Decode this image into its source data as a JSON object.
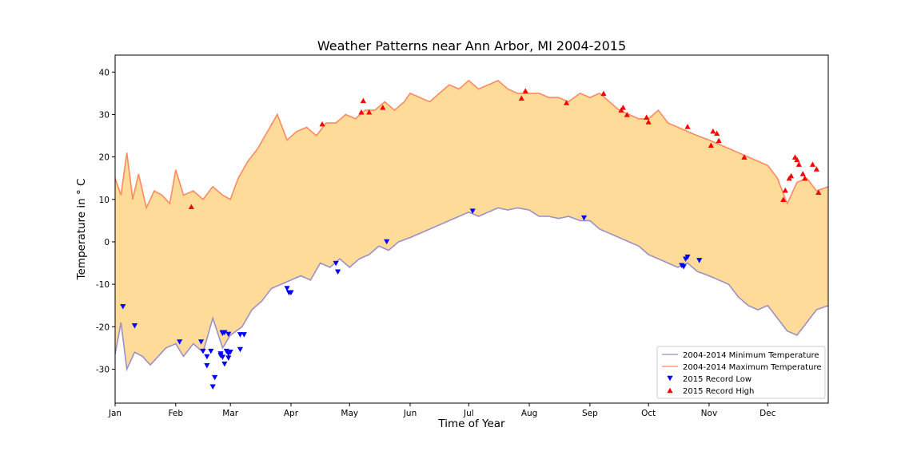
{
  "chart_data": {
    "type": "line",
    "title": "Weather Patterns near Ann Arbor, MI 2004-2015",
    "xlabel": "Time of Year",
    "ylabel": "Temperature in $^\\circ$C",
    "ylabel_display": "Temperature in ° C",
    "xlim": [
      0,
      365
    ],
    "ylim": [
      -38,
      44
    ],
    "x_ticks": [
      {
        "day": 0,
        "label": "Jan"
      },
      {
        "day": 31,
        "label": "Feb"
      },
      {
        "day": 59,
        "label": "Mar"
      },
      {
        "day": 90,
        "label": "Apr"
      },
      {
        "day": 120,
        "label": "May"
      },
      {
        "day": 151,
        "label": "Jun"
      },
      {
        "day": 181,
        "label": "Jul"
      },
      {
        "day": 212,
        "label": "Aug"
      },
      {
        "day": 243,
        "label": "Sep"
      },
      {
        "day": 273,
        "label": "Oct"
      },
      {
        "day": 304,
        "label": "Nov"
      },
      {
        "day": 334,
        "label": "Dec"
      }
    ],
    "y_ticks": [
      40,
      30,
      20,
      10,
      0,
      -10,
      -20,
      -30
    ],
    "legend_position": "lower right",
    "fill_between": {
      "color": "#ffdb9a",
      "between": [
        "2004-2014 Maximum Temperature",
        "2004-2014 Minimum Temperature"
      ]
    },
    "series": [
      {
        "name": "2004-2014 Minimum Temperature",
        "kind": "line",
        "color": "#9b8fc6",
        "x": [
          0,
          3,
          6,
          10,
          14,
          18,
          22,
          26,
          31,
          35,
          40,
          45,
          50,
          55,
          59,
          65,
          70,
          75,
          80,
          85,
          90,
          95,
          100,
          105,
          110,
          115,
          120,
          125,
          130,
          135,
          140,
          145,
          151,
          156,
          161,
          166,
          171,
          176,
          181,
          186,
          191,
          196,
          201,
          206,
          212,
          217,
          222,
          227,
          232,
          238,
          243,
          248,
          253,
          258,
          263,
          268,
          273,
          278,
          283,
          288,
          293,
          298,
          304,
          309,
          314,
          319,
          324,
          329,
          334,
          339,
          344,
          349,
          354,
          359,
          365
        ],
        "values": [
          -26.5,
          -19,
          -30,
          -26,
          -27,
          -29,
          -27,
          -25,
          -24,
          -27,
          -24,
          -26,
          -18,
          -25,
          -22,
          -20,
          -16,
          -14,
          -11,
          -10,
          -9,
          -8,
          -9,
          -5,
          -6,
          -4,
          -6,
          -4,
          -3,
          -1,
          -2,
          0,
          1,
          2,
          3,
          4,
          5,
          6,
          7,
          6,
          7,
          8,
          7.5,
          8,
          7.5,
          6,
          6,
          5.5,
          6,
          5,
          5,
          3,
          2,
          1,
          0,
          -1,
          -3,
          -4,
          -5,
          -6,
          -5,
          -7,
          -8,
          -9,
          -10,
          -13,
          -15,
          -16,
          -15,
          -18,
          -21,
          -22,
          -19,
          -16,
          -15
        ]
      },
      {
        "name": "2004-2014 Maximum Temperature",
        "kind": "line",
        "color": "#fa8a60",
        "x": [
          0,
          3,
          6,
          9,
          12,
          16,
          20,
          24,
          28,
          31,
          35,
          40,
          45,
          50,
          55,
          59,
          63,
          68,
          73,
          78,
          83,
          88,
          93,
          98,
          103,
          108,
          113,
          118,
          123,
          128,
          133,
          138,
          143,
          148,
          151,
          156,
          161,
          166,
          171,
          176,
          181,
          186,
          191,
          196,
          201,
          206,
          212,
          217,
          222,
          227,
          232,
          238,
          243,
          248,
          253,
          258,
          263,
          268,
          273,
          278,
          283,
          288,
          293,
          298,
          304,
          309,
          314,
          319,
          324,
          329,
          334,
          339,
          344,
          349,
          354,
          359,
          365
        ],
        "values": [
          15,
          11,
          21,
          10,
          16,
          8,
          12,
          11,
          9,
          17,
          11,
          12,
          10,
          13,
          11,
          10,
          15,
          19,
          22,
          26,
          30,
          24,
          26,
          27,
          25,
          28,
          28,
          30,
          29,
          31,
          31,
          33,
          31,
          33,
          35,
          34,
          33,
          35,
          37,
          36,
          38,
          36,
          37,
          38,
          36,
          35,
          35,
          35,
          34,
          34,
          33,
          35,
          34,
          35,
          33,
          31,
          30,
          29,
          29,
          31,
          28,
          27,
          26,
          25,
          24,
          23,
          22,
          21,
          20,
          19,
          18,
          15,
          9,
          14,
          15,
          12,
          13
        ]
      },
      {
        "name": "2015 Record Low",
        "kind": "scatter",
        "marker": "triangle-down",
        "color": "#0000ff",
        "x": [
          4,
          10,
          33,
          44,
          45,
          47,
          47,
          49,
          50,
          51,
          54,
          55,
          54,
          55,
          55,
          56,
          56,
          58,
          58,
          57,
          58,
          59,
          64,
          64,
          66,
          88,
          89,
          89,
          90,
          113,
          114,
          139,
          183,
          240,
          290,
          291,
          292,
          293,
          299
        ],
        "values": [
          -15.3,
          -19.8,
          -23.6,
          -23.6,
          -25.8,
          -29.2,
          -27.1,
          -25.8,
          -34.2,
          -32.0,
          -26.8,
          -21.6,
          -26.4,
          -27.2,
          -21.4,
          -28.8,
          -21.4,
          -27.4,
          -26.4,
          -25.8,
          -21.8,
          -26.0,
          -21.9,
          -25.4,
          -21.9,
          -11.0,
          -12.0,
          -12.0,
          -12.0,
          -5.1,
          -7.1,
          0.0,
          7.2,
          5.6,
          -5.6,
          -5.9,
          -4.1,
          -3.6,
          -4.4
        ]
      },
      {
        "name": "2015 Record High",
        "kind": "scatter",
        "marker": "triangle-up",
        "color": "#ff0000",
        "x": [
          39,
          106,
          126,
          127,
          130,
          137,
          208,
          210,
          231,
          250,
          259,
          260,
          262,
          272,
          273,
          293,
          305,
          306,
          308,
          309,
          322,
          342,
          343,
          345,
          346,
          348,
          349,
          350,
          352,
          353,
          357,
          359,
          360
        ],
        "values": [
          8.3,
          27.8,
          30.6,
          33.3,
          30.6,
          31.7,
          33.9,
          35.6,
          32.8,
          35.0,
          31.1,
          31.7,
          30.0,
          29.4,
          28.3,
          27.2,
          22.8,
          26.1,
          25.6,
          23.9,
          20.0,
          10.0,
          12.2,
          15.0,
          15.6,
          20.0,
          19.4,
          18.3,
          16.1,
          15.0,
          18.3,
          17.2,
          11.7
        ]
      }
    ]
  }
}
